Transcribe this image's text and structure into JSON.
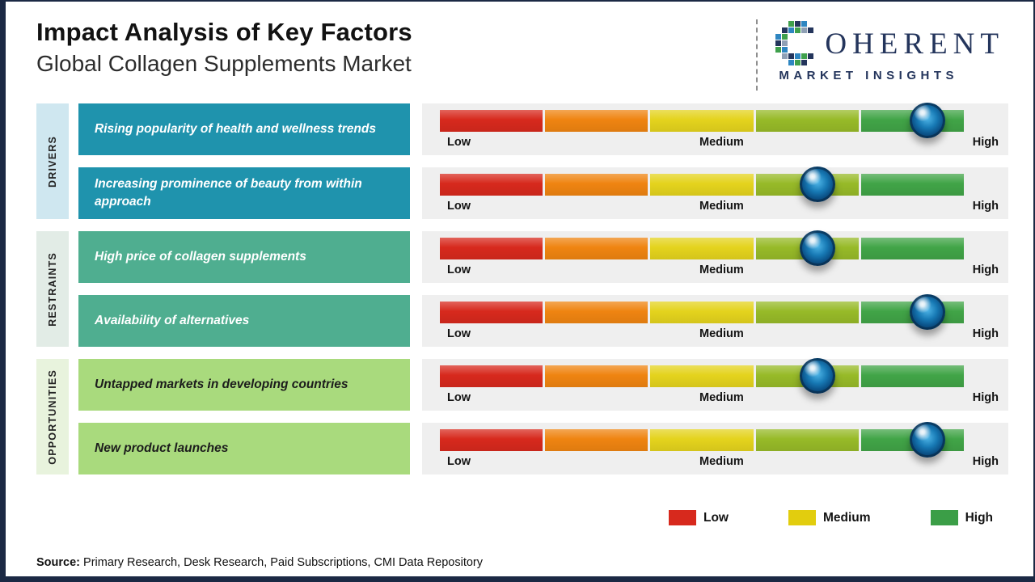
{
  "page": {
    "title": "Impact Analysis of Key Factors",
    "subtitle": "Global Collagen Supplements Market",
    "source_label": "Source:",
    "source_text": "Primary Research, Desk Research, Paid Subscriptions, CMI Data Repository"
  },
  "logo": {
    "brand": "COHERENT",
    "brand_rest": "OHERENT",
    "tagline": "MARKET INSIGHTS"
  },
  "colors": {
    "drivers_box": "#1f93ad",
    "restraints_box": "#4fae90",
    "opportunities_box": "#a9da7d",
    "panel_background": "#efefef",
    "border_navy": "#1b2944"
  },
  "chart_data": {
    "type": "bar",
    "title": "Impact Analysis of Key Factors",
    "subtitle": "Global Collagen Supplements Market",
    "scale": {
      "low": "Low",
      "medium": "Medium",
      "high": "High"
    },
    "axis_range_pct": [
      0,
      100
    ],
    "segment_colors": [
      "#d7291d",
      "#ef8411",
      "#e4d31d",
      "#97ba28",
      "#41a447"
    ],
    "categories": [
      {
        "label": "DRIVERS"
      },
      {
        "label": "RESTRAINTS"
      },
      {
        "label": "OPPORTUNITIES"
      }
    ],
    "rows": [
      {
        "category": "DRIVERS",
        "factor": "Rising popularity of health and wellness trends",
        "impact_pct": 93,
        "impact_level": "High"
      },
      {
        "category": "DRIVERS",
        "factor": "Increasing prominence of beauty from within approach",
        "impact_pct": 72,
        "impact_level": "Medium-High"
      },
      {
        "category": "RESTRAINTS",
        "factor": "High price of collagen supplements",
        "impact_pct": 72,
        "impact_level": "Medium-High"
      },
      {
        "category": "RESTRAINTS",
        "factor": "Availability of alternatives",
        "impact_pct": 93,
        "impact_level": "High"
      },
      {
        "category": "OPPORTUNITIES",
        "factor": "Untapped markets in developing countries",
        "impact_pct": 72,
        "impact_level": "Medium-High"
      },
      {
        "category": "OPPORTUNITIES",
        "factor": "New product launches",
        "impact_pct": 93,
        "impact_level": "High"
      }
    ],
    "legend": [
      {
        "label": "Low",
        "color": "#d7291d"
      },
      {
        "label": "Medium",
        "color": "#e2cd0e"
      },
      {
        "label": "High",
        "color": "#3b9e47"
      }
    ],
    "legend_position": "bottom-right"
  }
}
